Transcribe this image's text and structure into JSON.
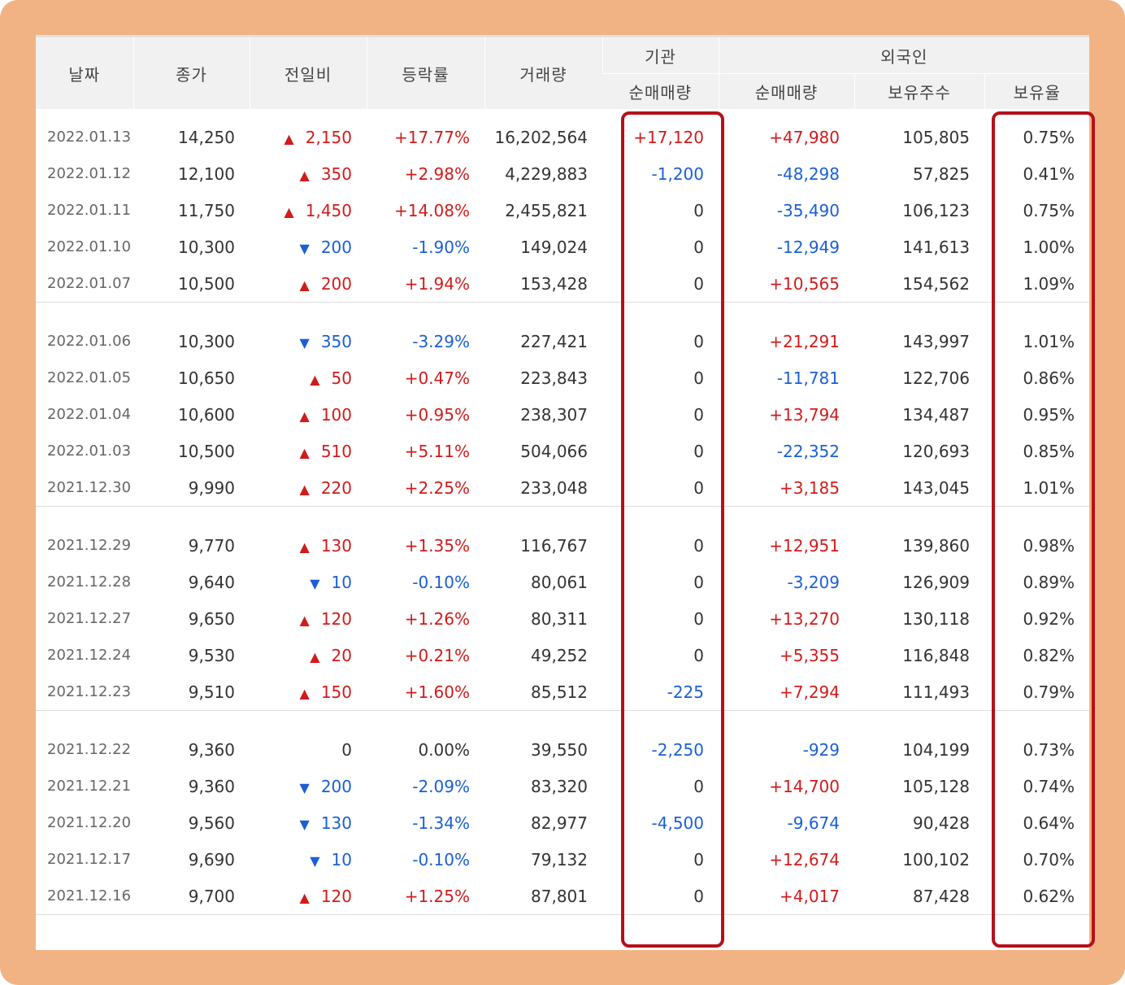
{
  "header": {
    "date": "날짜",
    "close": "종가",
    "change": "전일비",
    "rate": "등락률",
    "volume": "거래량",
    "institution": "기관",
    "foreign": "외국인",
    "inst_net": "순매매량",
    "foreign_net": "순매매량",
    "foreign_shares": "보유주수",
    "foreign_ratio": "보유율"
  },
  "colors": {
    "up": "#d21b1b",
    "down": "#1a5fd6",
    "highlight": "#b5111a",
    "frame": "#f2b384"
  },
  "groups": [
    [
      {
        "date": "2022.01.13",
        "close": "14,250",
        "dir": "up",
        "change": "2,150",
        "rate": "+17.77%",
        "volume": "16,202,564",
        "inst": "+17,120",
        "foreign": "+47,980",
        "shares": "105,805",
        "ratio": "0.75%"
      },
      {
        "date": "2022.01.12",
        "close": "12,100",
        "dir": "up",
        "change": "350",
        "rate": "+2.98%",
        "volume": "4,229,883",
        "inst": "-1,200",
        "foreign": "-48,298",
        "shares": "57,825",
        "ratio": "0.41%"
      },
      {
        "date": "2022.01.11",
        "close": "11,750",
        "dir": "up",
        "change": "1,450",
        "rate": "+14.08%",
        "volume": "2,455,821",
        "inst": "0",
        "foreign": "-35,490",
        "shares": "106,123",
        "ratio": "0.75%"
      },
      {
        "date": "2022.01.10",
        "close": "10,300",
        "dir": "down",
        "change": "200",
        "rate": "-1.90%",
        "volume": "149,024",
        "inst": "0",
        "foreign": "-12,949",
        "shares": "141,613",
        "ratio": "1.00%"
      },
      {
        "date": "2022.01.07",
        "close": "10,500",
        "dir": "up",
        "change": "200",
        "rate": "+1.94%",
        "volume": "153,428",
        "inst": "0",
        "foreign": "+10,565",
        "shares": "154,562",
        "ratio": "1.09%"
      }
    ],
    [
      {
        "date": "2022.01.06",
        "close": "10,300",
        "dir": "down",
        "change": "350",
        "rate": "-3.29%",
        "volume": "227,421",
        "inst": "0",
        "foreign": "+21,291",
        "shares": "143,997",
        "ratio": "1.01%"
      },
      {
        "date": "2022.01.05",
        "close": "10,650",
        "dir": "up",
        "change": "50",
        "rate": "+0.47%",
        "volume": "223,843",
        "inst": "0",
        "foreign": "-11,781",
        "shares": "122,706",
        "ratio": "0.86%"
      },
      {
        "date": "2022.01.04",
        "close": "10,600",
        "dir": "up",
        "change": "100",
        "rate": "+0.95%",
        "volume": "238,307",
        "inst": "0",
        "foreign": "+13,794",
        "shares": "134,487",
        "ratio": "0.95%"
      },
      {
        "date": "2022.01.03",
        "close": "10,500",
        "dir": "up",
        "change": "510",
        "rate": "+5.11%",
        "volume": "504,066",
        "inst": "0",
        "foreign": "-22,352",
        "shares": "120,693",
        "ratio": "0.85%"
      },
      {
        "date": "2021.12.30",
        "close": "9,990",
        "dir": "up",
        "change": "220",
        "rate": "+2.25%",
        "volume": "233,048",
        "inst": "0",
        "foreign": "+3,185",
        "shares": "143,045",
        "ratio": "1.01%"
      }
    ],
    [
      {
        "date": "2021.12.29",
        "close": "9,770",
        "dir": "up",
        "change": "130",
        "rate": "+1.35%",
        "volume": "116,767",
        "inst": "0",
        "foreign": "+12,951",
        "shares": "139,860",
        "ratio": "0.98%"
      },
      {
        "date": "2021.12.28",
        "close": "9,640",
        "dir": "down",
        "change": "10",
        "rate": "-0.10%",
        "volume": "80,061",
        "inst": "0",
        "foreign": "-3,209",
        "shares": "126,909",
        "ratio": "0.89%"
      },
      {
        "date": "2021.12.27",
        "close": "9,650",
        "dir": "up",
        "change": "120",
        "rate": "+1.26%",
        "volume": "80,311",
        "inst": "0",
        "foreign": "+13,270",
        "shares": "130,118",
        "ratio": "0.92%"
      },
      {
        "date": "2021.12.24",
        "close": "9,530",
        "dir": "up",
        "change": "20",
        "rate": "+0.21%",
        "volume": "49,252",
        "inst": "0",
        "foreign": "+5,355",
        "shares": "116,848",
        "ratio": "0.82%"
      },
      {
        "date": "2021.12.23",
        "close": "9,510",
        "dir": "up",
        "change": "150",
        "rate": "+1.60%",
        "volume": "85,512",
        "inst": "-225",
        "foreign": "+7,294",
        "shares": "111,493",
        "ratio": "0.79%"
      }
    ],
    [
      {
        "date": "2021.12.22",
        "close": "9,360",
        "dir": "none",
        "change": "0",
        "rate": "0.00%",
        "volume": "39,550",
        "inst": "-2,250",
        "foreign": "-929",
        "shares": "104,199",
        "ratio": "0.73%"
      },
      {
        "date": "2021.12.21",
        "close": "9,360",
        "dir": "down",
        "change": "200",
        "rate": "-2.09%",
        "volume": "83,320",
        "inst": "0",
        "foreign": "+14,700",
        "shares": "105,128",
        "ratio": "0.74%"
      },
      {
        "date": "2021.12.20",
        "close": "9,560",
        "dir": "down",
        "change": "130",
        "rate": "-1.34%",
        "volume": "82,977",
        "inst": "-4,500",
        "foreign": "-9,674",
        "shares": "90,428",
        "ratio": "0.64%"
      },
      {
        "date": "2021.12.17",
        "close": "9,690",
        "dir": "down",
        "change": "10",
        "rate": "-0.10%",
        "volume": "79,132",
        "inst": "0",
        "foreign": "+12,674",
        "shares": "100,102",
        "ratio": "0.70%"
      },
      {
        "date": "2021.12.16",
        "close": "9,700",
        "dir": "up",
        "change": "120",
        "rate": "+1.25%",
        "volume": "87,801",
        "inst": "0",
        "foreign": "+4,017",
        "shares": "87,428",
        "ratio": "0.62%"
      }
    ]
  ]
}
